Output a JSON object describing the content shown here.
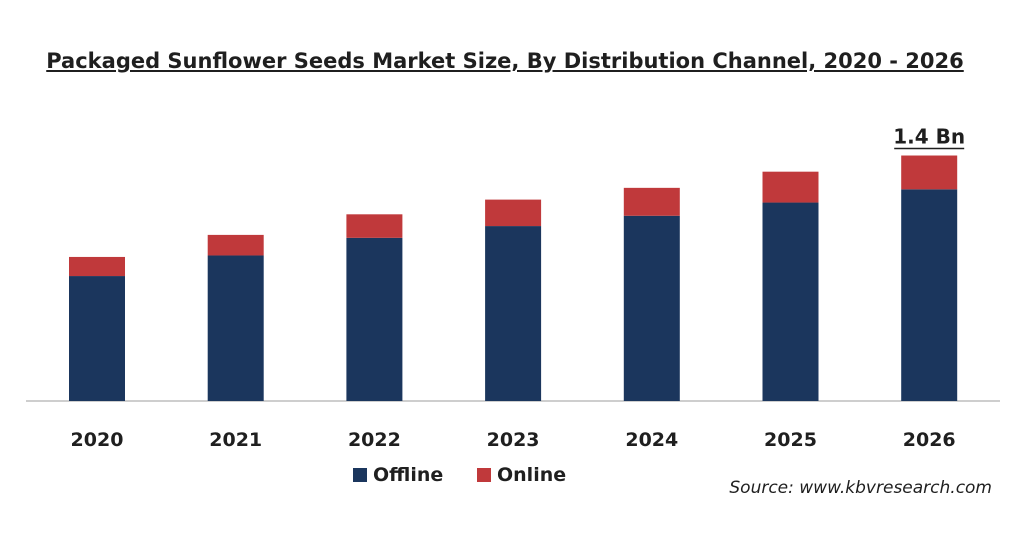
{
  "chart_data": {
    "type": "bar",
    "stacked": true,
    "title": "Packaged Sunflower Seeds Market Size, By Distribution  Channel, 2020 - 2026",
    "categories": [
      "2020",
      "2021",
      "2022",
      "2023",
      "2024",
      "2025",
      "2026"
    ],
    "series": [
      {
        "name": "Offline",
        "color": "#1b365d",
        "values": [
          0.85,
          0.99,
          1.11,
          1.19,
          1.26,
          1.35,
          1.44
        ]
      },
      {
        "name": "Online",
        "color": "#c0393b",
        "values": [
          0.13,
          0.14,
          0.16,
          0.18,
          0.19,
          0.21,
          0.23
        ]
      }
    ],
    "ylim": [
      0,
      1.7
    ],
    "axis": {
      "y_visible": false,
      "grid": false
    },
    "legend": {
      "position": "bottom"
    },
    "annotations": [
      {
        "category": "2026",
        "text": "1.4 Bn"
      }
    ]
  },
  "source_text": "Source: www.kbvresearch.com"
}
